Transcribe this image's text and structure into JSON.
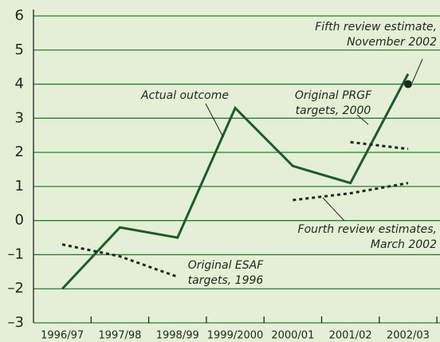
{
  "chart_data": {
    "type": "line",
    "categories": [
      "1996/97",
      "1997/98",
      "1998/99",
      "1999/2000",
      "2000/01",
      "2001/02",
      "2002/03"
    ],
    "series": [
      {
        "label_lines": [
          "Actual outcome"
        ],
        "color": "#1d5a2c",
        "style": "solid",
        "values": [
          -2.0,
          -0.2,
          -0.5,
          3.3,
          1.6,
          1.1,
          4.3
        ]
      },
      {
        "label_lines": [
          "Original ESAF",
          "targets, 1996"
        ],
        "color": "#1a2a1a",
        "style": "dashed",
        "values": [
          -0.7,
          -1.05,
          -1.65,
          null,
          null,
          null,
          null
        ]
      },
      {
        "label_lines": [
          "Original PRGF",
          "targets, 2000"
        ],
        "color": "#1a2a1a",
        "style": "dashed",
        "values": [
          null,
          null,
          null,
          null,
          null,
          2.3,
          2.1
        ]
      },
      {
        "label_lines": [
          "Fourth review estimates,",
          "March 2002"
        ],
        "color": "#1a2a1a",
        "style": "dashed",
        "values": [
          null,
          null,
          null,
          null,
          0.6,
          0.8,
          1.1
        ]
      },
      {
        "label_lines": [
          "Fifth review estimate,",
          "November 2002"
        ],
        "color": "#1a2a1a",
        "style": "point",
        "values": [
          null,
          null,
          null,
          null,
          null,
          null,
          4.0
        ]
      }
    ],
    "ylim": [
      -3,
      6
    ],
    "yticks": [
      {
        "value": -3,
        "label": "–3"
      },
      {
        "value": -2,
        "label": "–2"
      },
      {
        "value": -1,
        "label": "–1"
      },
      0,
      1,
      2,
      3,
      4,
      5,
      6
    ],
    "grid": true
  }
}
